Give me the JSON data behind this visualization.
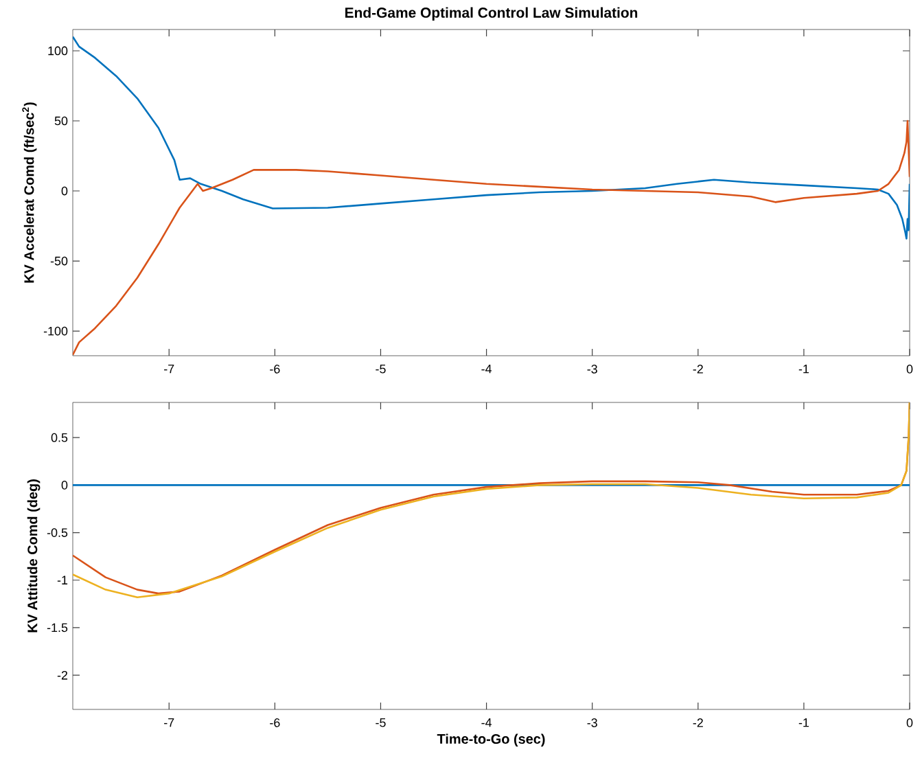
{
  "chart_data": [
    {
      "type": "line",
      "title": "End-Game Optimal Control Law Simulation",
      "ylabel": "KV Accelerat Comd (ft/sec$^{2}$)",
      "xlim": [
        -7.91,
        0
      ],
      "ylim": [
        -117.6,
        115.2
      ],
      "xticks": [
        -7,
        -6,
        -5,
        -4,
        -3,
        -2,
        -1,
        0
      ],
      "yticks": [
        -100,
        -50,
        0,
        50,
        100
      ],
      "line_style": "solid",
      "series": [
        {
          "color": "#0072bd",
          "x": [
            -7.91,
            -7.85,
            -7.7,
            -7.5,
            -7.3,
            -7.1,
            -6.95,
            -6.9,
            -6.8,
            -6.7,
            -6.5,
            -6.3,
            -6.02,
            -5.5,
            -5,
            -4.5,
            -4,
            -3.5,
            -3,
            -2.5,
            -2.2,
            -1.85,
            -1.5,
            -1,
            -0.5,
            -0.3,
            -0.2,
            -0.12,
            -0.07,
            -0.04,
            -0.03,
            -0.02,
            -0.01,
            0
          ],
          "values": [
            110,
            103,
            95,
            82,
            66,
            45,
            22,
            8,
            9,
            5,
            0,
            -6,
            -12.5,
            -12,
            -9,
            -6,
            -3,
            -1,
            0,
            2,
            5,
            8,
            6,
            4,
            2,
            1,
            -2,
            -10,
            -20,
            -30,
            -34,
            -20,
            -28,
            5
          ]
        },
        {
          "color": "#d95319",
          "x": [
            -7.91,
            -7.85,
            -7.7,
            -7.5,
            -7.3,
            -7.1,
            -6.9,
            -6.73,
            -6.68,
            -6.6,
            -6.4,
            -6.2,
            -5.8,
            -5.5,
            -5,
            -4.5,
            -4,
            -3.5,
            -3,
            -2.5,
            -2,
            -1.5,
            -1.27,
            -1,
            -0.5,
            -0.3,
            -0.2,
            -0.1,
            -0.05,
            -0.03,
            -0.02,
            -0.01,
            0
          ],
          "values": [
            -117,
            -108,
            -98,
            -82,
            -62,
            -38,
            -12,
            5,
            0,
            2,
            8,
            15,
            15,
            14,
            11,
            8,
            5,
            3,
            1,
            0,
            -1,
            -4,
            -8,
            -5,
            -2,
            0,
            5,
            15,
            27,
            35,
            50,
            30,
            10
          ]
        }
      ]
    },
    {
      "type": "line",
      "xlabel": "Time-to-Go (sec)",
      "ylabel": "KV Attitude Comd (deg)",
      "xlim": [
        -7.91,
        0
      ],
      "ylim": [
        -2.36,
        0.87
      ],
      "xticks": [
        -7,
        -6,
        -5,
        -4,
        -3,
        -2,
        -1,
        0
      ],
      "yticks": [
        -2,
        -1.5,
        -1,
        -0.5,
        0,
        0.5
      ],
      "line_style": "solid",
      "series": [
        {
          "color": "#0072bd",
          "x": [
            -7.91,
            0
          ],
          "values": [
            0,
            0
          ]
        },
        {
          "color": "#d95319",
          "x": [
            -7.91,
            -7.6,
            -7.3,
            -7.1,
            -6.9,
            -6.5,
            -6,
            -5.5,
            -5,
            -4.5,
            -4,
            -3.5,
            -3,
            -2.5,
            -2,
            -1.7,
            -1.3,
            -1,
            -0.5,
            -0.2,
            -0.08,
            -0.03,
            -0.01,
            0
          ],
          "values": [
            -0.74,
            -0.97,
            -1.1,
            -1.14,
            -1.12,
            -0.95,
            -0.68,
            -0.42,
            -0.24,
            -0.1,
            -0.02,
            0.02,
            0.04,
            0.04,
            0.03,
            0,
            -0.07,
            -0.1,
            -0.1,
            -0.06,
            0,
            0.15,
            0.5,
            0.87
          ]
        },
        {
          "color": "#edb120",
          "x": [
            -7.91,
            -7.6,
            -7.3,
            -7.0,
            -6.5,
            -6,
            -5.5,
            -5,
            -4.5,
            -4,
            -3.5,
            -3,
            -2.5,
            -2,
            -1.5,
            -1,
            -0.5,
            -0.2,
            -0.08,
            -0.03,
            -0.01,
            0
          ],
          "values": [
            -0.94,
            -1.1,
            -1.18,
            -1.14,
            -0.96,
            -0.7,
            -0.45,
            -0.26,
            -0.12,
            -0.04,
            0,
            0.01,
            0.01,
            -0.03,
            -0.1,
            -0.14,
            -0.13,
            -0.08,
            0,
            0.15,
            0.5,
            0.87
          ]
        }
      ]
    }
  ]
}
